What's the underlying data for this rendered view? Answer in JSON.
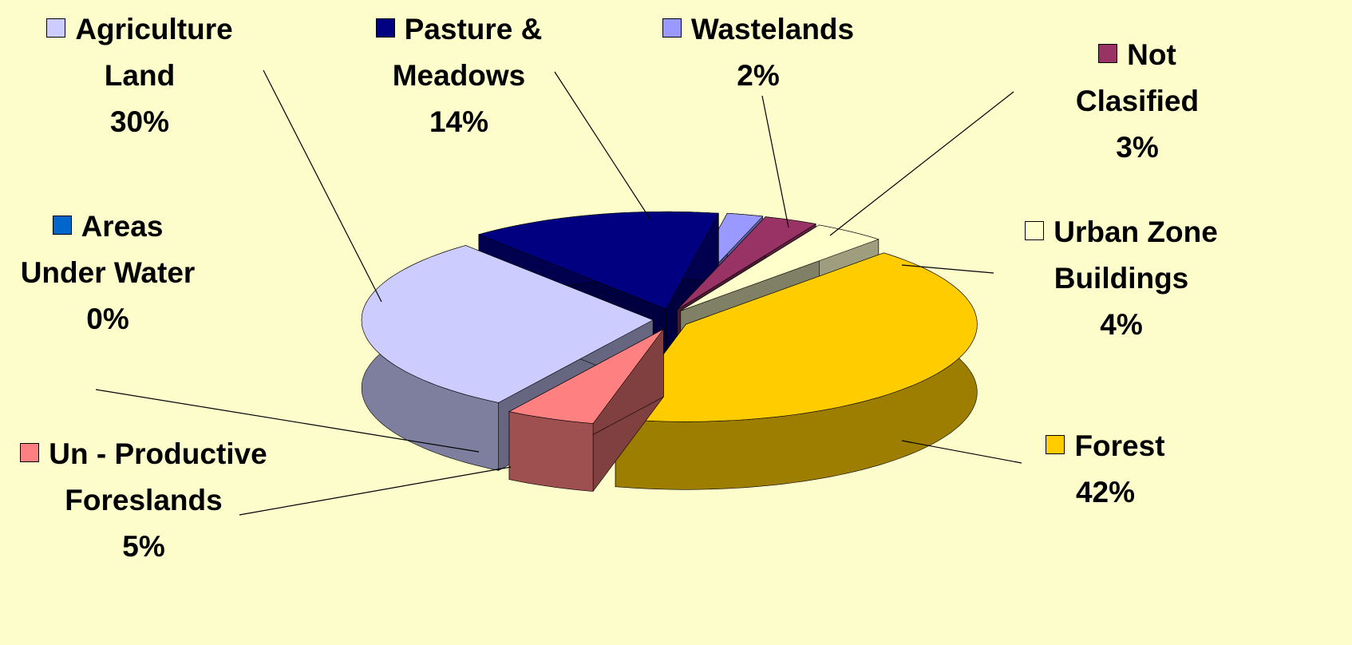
{
  "chart_data": {
    "type": "pie",
    "categories": [
      "Pasture & Meadows",
      "Wastelands",
      "Not Clasified",
      "Urban Zone Buildings",
      "Areas Under Water",
      "Forest",
      "Un - Productive Foreslands",
      "Agriculture Land"
    ],
    "values": [
      14,
      2,
      3,
      4,
      0,
      42,
      5,
      30
    ],
    "value_labels": [
      "14%",
      "2%",
      "3%",
      "4%",
      "0%",
      "42%",
      "5%",
      "30%"
    ],
    "colors": [
      "#000080",
      "#9999ff",
      "#993366",
      "#ffffcc",
      "#0066cc",
      "#ffcc00",
      "#ff8080",
      "#ccccff"
    ]
  }
}
